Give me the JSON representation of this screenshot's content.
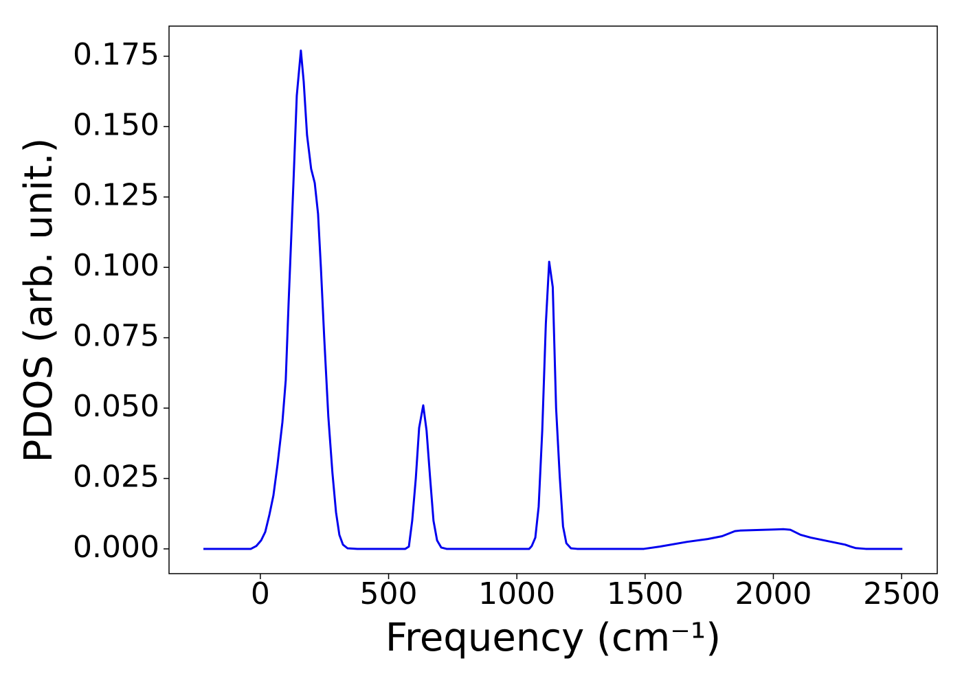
{
  "chart_data": {
    "type": "line",
    "xlabel": "Frequency (cm⁻¹)",
    "ylabel": "PDOS (arb. unit.)",
    "xlim": [
      -356,
      2639
    ],
    "ylim": [
      -0.0088,
      0.1857
    ],
    "xticks": [
      0,
      500,
      1000,
      1500,
      2000,
      2500
    ],
    "yticks": [
      {
        "value": 0,
        "label": "0.000"
      },
      {
        "value": 0.025,
        "label": "0.025"
      },
      {
        "value": 0.05,
        "label": "0.050"
      },
      {
        "value": 0.075,
        "label": "0.075"
      },
      {
        "value": 0.1,
        "label": "0.100"
      },
      {
        "value": 0.125,
        "label": "0.125"
      },
      {
        "value": 0.15,
        "label": "0.150"
      },
      {
        "value": 0.175,
        "label": "0.175"
      }
    ],
    "grid": false,
    "series": [
      {
        "name": "PDOS",
        "color": "#0000ee",
        "x": [
          -222,
          -37,
          -16,
          3,
          19,
          35,
          51,
          67,
          86,
          99,
          110,
          129,
          142,
          158,
          169,
          182,
          198,
          212,
          225,
          236,
          249,
          265,
          281,
          295,
          308,
          322,
          340,
          378,
          565,
          579,
          592,
          606,
          619,
          635,
          648,
          662,
          675,
          689,
          705,
          726,
          1048,
          1058,
          1072,
          1085,
          1099,
          1113,
          1126,
          1140,
          1153,
          1167,
          1180,
          1193,
          1211,
          1235,
          1495,
          1557,
          1664,
          1744,
          1800,
          1850,
          1870,
          2012,
          2039,
          2066,
          2106,
          2146,
          2226,
          2280,
          2302,
          2320,
          2360,
          2503
        ],
        "values": [
          0,
          0,
          0.001,
          0.003,
          0.006,
          0.012,
          0.019,
          0.03,
          0.045,
          0.06,
          0.087,
          0.13,
          0.161,
          0.177,
          0.166,
          0.147,
          0.135,
          0.13,
          0.119,
          0.1,
          0.075,
          0.047,
          0.027,
          0.013,
          0.005,
          0.0015,
          0.0002,
          0,
          0,
          0.0008,
          0.01,
          0.025,
          0.043,
          0.051,
          0.042,
          0.025,
          0.01,
          0.003,
          0.0005,
          0,
          0,
          0.001,
          0.004,
          0.015,
          0.042,
          0.08,
          0.102,
          0.093,
          0.05,
          0.026,
          0.008,
          0.002,
          0.0002,
          0,
          0,
          0.0008,
          0.0025,
          0.0035,
          0.0045,
          0.0063,
          0.0065,
          0.0069,
          0.007,
          0.0068,
          0.005,
          0.004,
          0.0025,
          0.0015,
          0.0008,
          0.0003,
          0,
          0
        ]
      }
    ]
  }
}
